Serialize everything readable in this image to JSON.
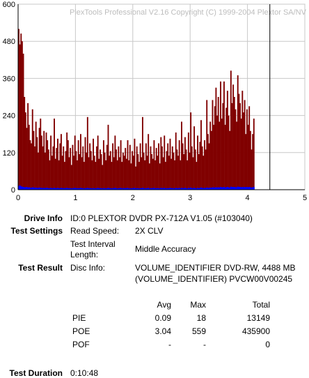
{
  "chart_data": {
    "type": "bar",
    "title": "PlexTools Professional V2.16 Copyright (C) 1999-2004 Plextor SA/NV",
    "xlim": [
      0,
      5
    ],
    "ylim": [
      0,
      600
    ],
    "x_ticks": [
      "0",
      "1",
      "2",
      "3",
      "4",
      "5"
    ],
    "y_ticks": [
      "0",
      "120",
      "240",
      "360",
      "480",
      "600"
    ],
    "end_marker_x": 4.39,
    "grid": true,
    "series": [
      {
        "color": "#800000",
        "x_step": 0.02,
        "values": [
          520,
          470,
          505,
          480,
          440,
          300,
          250,
          200,
          280,
          210,
          160,
          150,
          260,
          190,
          140,
          220,
          170,
          120,
          200,
          230,
          175,
          140,
          190,
          120,
          185,
          160,
          130,
          95,
          175,
          110,
          140,
          230,
          100,
          135,
          165,
          95,
          150,
          180,
          110,
          140,
          90,
          125,
          185,
          160,
          105,
          135,
          80,
          145,
          110,
          175,
          125,
          95,
          160,
          115,
          180,
          105,
          140,
          90,
          170,
          120,
          235,
          105,
          150,
          125,
          95,
          165,
          110,
          90,
          140,
          175,
          100,
          130,
          115,
          80,
          160,
          120,
          95,
          145,
          210,
          110,
          125,
          90,
          150,
          105,
          175,
          130,
          95,
          140,
          105,
          160,
          90,
          120,
          110,
          135,
          100,
          160,
          95,
          145,
          85,
          125,
          110,
          165,
          75,
          140,
          115,
          90,
          150,
          105,
          235,
          120,
          95,
          150,
          110,
          180,
          85,
          140,
          115,
          100,
          160,
          95,
          135,
          110,
          150,
          85,
          170,
          140,
          105,
          175,
          90,
          125,
          150,
          110,
          165,
          100,
          140,
          120,
          95,
          185,
          130,
          110,
          160,
          95,
          220,
          150,
          115,
          170,
          130,
          95,
          185,
          120,
          250,
          140,
          105,
          205,
          130,
          90,
          175,
          115,
          155,
          225,
          140,
          110,
          160,
          130,
          290,
          180,
          150,
          220,
          190,
          290,
          210,
          270,
          330,
          240,
          300,
          220,
          350,
          230,
          280,
          350,
          210,
          265,
          320,
          240,
          190,
          385,
          280,
          340,
          300,
          260,
          220,
          370,
          310,
          280,
          230,
          320,
          250,
          290,
          180,
          260,
          210,
          270,
          190,
          130,
          180,
          230
        ]
      },
      {
        "color": "#0000ff",
        "x_step": 0.02,
        "values": [
          12,
          14,
          11,
          10,
          9,
          8,
          8,
          9,
          7,
          8,
          7,
          6,
          8,
          7,
          6,
          7,
          6,
          6,
          7,
          6,
          6,
          5,
          6,
          5,
          6,
          6,
          5,
          5,
          6,
          5,
          5,
          6,
          5,
          5,
          6,
          5,
          5,
          6,
          5,
          5,
          5,
          5,
          6,
          5,
          5,
          5,
          4,
          5,
          5,
          6,
          5,
          5,
          5,
          5,
          6,
          5,
          5,
          4,
          5,
          5,
          6,
          5,
          5,
          5,
          4,
          5,
          5,
          4,
          5,
          6,
          5,
          5,
          5,
          4,
          5,
          5,
          4,
          5,
          6,
          5,
          5,
          4,
          5,
          5,
          6,
          5,
          4,
          5,
          5,
          6,
          4,
          5,
          5,
          5,
          5,
          6,
          4,
          5,
          4,
          5,
          5,
          6,
          4,
          5,
          5,
          4,
          5,
          5,
          6,
          5,
          4,
          5,
          5,
          6,
          4,
          5,
          5,
          5,
          6,
          4,
          5,
          5,
          5,
          4,
          6,
          5,
          5,
          6,
          4,
          5,
          5,
          5,
          6,
          5,
          5,
          5,
          4,
          6,
          5,
          5,
          6,
          4,
          6,
          5,
          5,
          6,
          5,
          4,
          6,
          5,
          7,
          5,
          5,
          6,
          5,
          4,
          6,
          5,
          6,
          7,
          6,
          5,
          6,
          5,
          7,
          6,
          6,
          7,
          6,
          8,
          7,
          7,
          8,
          7,
          8,
          7,
          9,
          8,
          8,
          9,
          7,
          8,
          9,
          8,
          7,
          10,
          9,
          9,
          9,
          8,
          8,
          10,
          9,
          9,
          8,
          9,
          8,
          9,
          8,
          9,
          8,
          9,
          8,
          7,
          8,
          9
        ]
      }
    ]
  },
  "info": {
    "drive_info_label": "Drive Info",
    "drive_info_value": "ID:0 PLEXTOR DVDR PX-712A V1.05 (#103040)",
    "test_settings_label": "Test Settings",
    "read_speed_label": "Read Speed:",
    "read_speed_value": "2X CLV",
    "interval_label_line1": "Test Interval",
    "interval_label_line2": "Length:",
    "interval_value": "Middle Accuracy",
    "test_result_label": "Test Result",
    "disc_info_label": "Disc Info:",
    "disc_info_line1": "VOLUME_IDENTIFIER DVD-RW, 4488 MB",
    "disc_info_line2": "(VOLUME_IDENTIFIER) PVCW00V00245",
    "test_duration_label": "Test Duration",
    "test_duration_value": "0:10:48"
  },
  "results_table": {
    "headers": {
      "avg": "Avg",
      "max": "Max",
      "total": "Total"
    },
    "rows": [
      {
        "name": "PIE",
        "avg": "0.09",
        "max": "18",
        "total": "13149"
      },
      {
        "name": "POE",
        "avg": "3.04",
        "max": "559",
        "total": "435900"
      },
      {
        "name": "POF",
        "avg": "-",
        "max": "-",
        "total": "0"
      }
    ]
  }
}
